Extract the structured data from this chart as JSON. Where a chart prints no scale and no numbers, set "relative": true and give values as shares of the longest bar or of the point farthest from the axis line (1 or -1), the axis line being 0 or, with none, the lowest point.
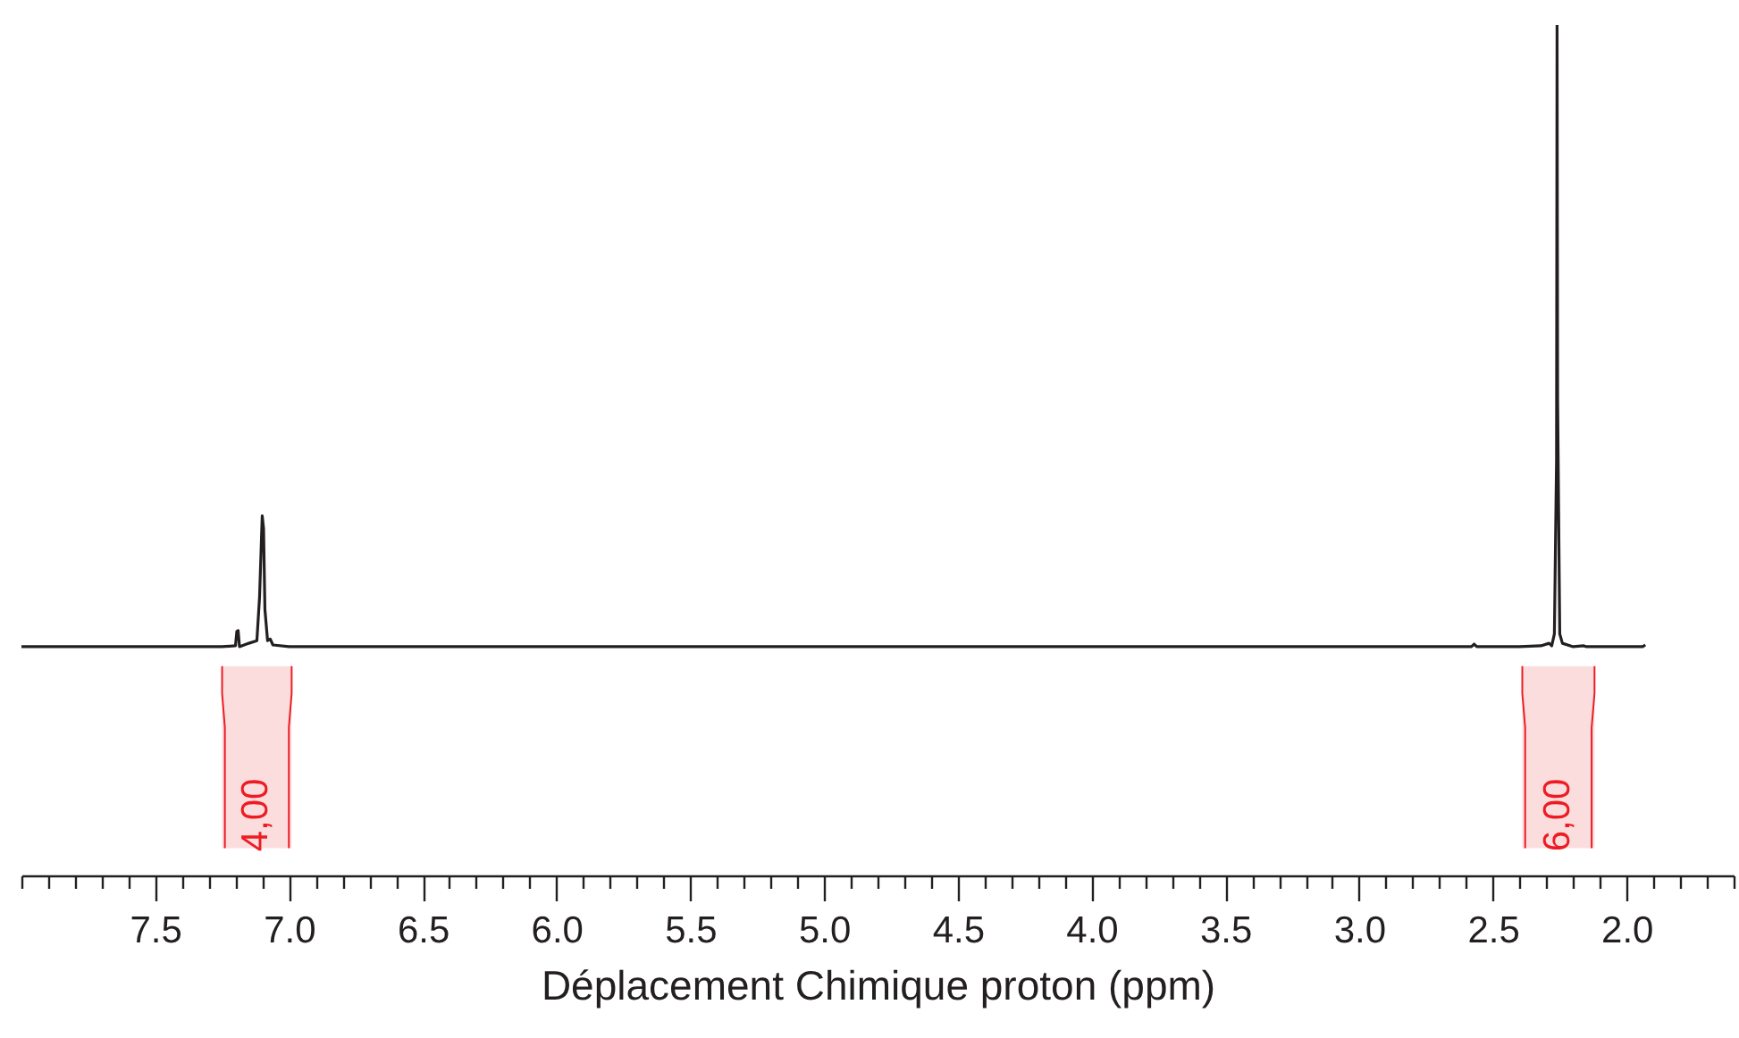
{
  "chart_data": {
    "type": "line",
    "xlabel": "Déplacement Chimique proton (ppm)",
    "relative": true,
    "xlim": [
      8.0,
      1.6
    ],
    "xticks": [
      {
        "value": 8.0,
        "label": null
      },
      {
        "value": 7.9,
        "label": null
      },
      {
        "value": 7.8,
        "label": null
      },
      {
        "value": 7.7,
        "label": null
      },
      {
        "value": 7.6,
        "label": null
      },
      "7.5",
      {
        "value": 7.4,
        "label": null
      },
      {
        "value": 7.3,
        "label": null
      },
      {
        "value": 7.2,
        "label": null
      },
      {
        "value": 7.1,
        "label": null
      },
      {
        "value": 7.0,
        "label": "7.0"
      },
      {
        "value": 6.9,
        "label": null
      },
      {
        "value": 6.8,
        "label": null
      },
      {
        "value": 6.7,
        "label": null
      },
      {
        "value": 6.6,
        "label": null
      },
      6.5,
      {
        "value": 6.4,
        "label": null
      },
      {
        "value": 6.3,
        "label": null
      },
      {
        "value": 6.2,
        "label": null
      },
      {
        "value": 6.1,
        "label": null
      },
      {
        "value": 6.0,
        "label": "6.0"
      },
      {
        "value": 5.9,
        "label": null
      },
      {
        "value": 5.8,
        "label": null
      },
      {
        "value": 5.7,
        "label": null
      },
      {
        "value": 5.6,
        "label": null
      },
      5.5,
      {
        "value": 5.4,
        "label": null
      },
      {
        "value": 5.3,
        "label": null
      },
      {
        "value": 5.2,
        "label": null
      },
      {
        "value": 5.1,
        "label": null
      },
      {
        "value": 5.0,
        "label": "5.0"
      },
      {
        "value": 4.9,
        "label": null
      },
      {
        "value": 4.8,
        "label": null
      },
      {
        "value": 4.7,
        "label": null
      },
      {
        "value": 4.6,
        "label": null
      },
      4.5,
      {
        "value": 4.4,
        "label": null
      },
      {
        "value": 4.3,
        "label": null
      },
      {
        "value": 4.2,
        "label": null
      },
      {
        "value": 4.1,
        "label": null
      },
      {
        "value": 4.0,
        "label": "4.0"
      },
      {
        "value": 3.9,
        "label": null
      },
      {
        "value": 3.8,
        "label": null
      },
      {
        "value": 3.7,
        "label": null
      },
      {
        "value": 3.6,
        "label": null
      },
      3.5,
      {
        "value": 3.4,
        "label": null
      },
      {
        "value": 3.3,
        "label": null
      },
      {
        "value": 3.2,
        "label": null
      },
      {
        "value": 3.1,
        "label": null
      },
      {
        "value": 3.0,
        "label": "3.0"
      },
      {
        "value": 2.9,
        "label": null
      },
      {
        "value": 2.8,
        "label": null
      },
      {
        "value": 2.7,
        "label": null
      },
      {
        "value": 2.6,
        "label": null
      },
      2.5,
      {
        "value": 2.4,
        "label": null
      },
      {
        "value": 2.3,
        "label": null
      },
      {
        "value": 2.2,
        "label": null
      },
      {
        "value": 2.1,
        "label": null
      },
      {
        "value": 2.0,
        "label": "2.0"
      },
      {
        "value": 1.9,
        "label": null
      },
      {
        "value": 1.8,
        "label": null
      },
      {
        "value": 1.7,
        "label": null
      },
      {
        "value": 1.6,
        "label": null
      }
    ],
    "x": [
      8.0,
      7.5,
      7.25,
      7.2,
      7.195,
      7.19,
      7.185,
      7.15,
      7.12,
      7.11,
      7.1,
      7.095,
      7.09,
      7.08,
      7.07,
      7.06,
      7.0,
      6.5,
      3.0,
      2.58,
      2.57,
      2.56,
      2.4,
      2.32,
      2.29,
      2.28,
      2.27,
      2.262,
      2.26,
      2.258,
      2.25,
      2.24,
      2.2,
      2.16,
      2.15,
      1.94,
      1.93
    ],
    "series": [
      {
        "color": "#231f20",
        "values": [
          0.269,
          0.269,
          0.269,
          0.27,
          0.287,
          0.288,
          0.269,
          0.273,
          0.276,
          0.327,
          0.423,
          0.408,
          0.313,
          0.276,
          0.278,
          0.271,
          0.269,
          0.269,
          0.269,
          0.269,
          0.272,
          0.269,
          0.269,
          0.27,
          0.273,
          0.27,
          0.284,
          0.488,
          1,
          0.561,
          0.284,
          0.273,
          0.269,
          0.27,
          0.269,
          0.269,
          0.271
        ]
      }
    ],
    "bands": [
      {
        "axis": "x",
        "from": 7.25,
        "to": 6.99,
        "label": "4,00",
        "color": "#ed1c24"
      },
      {
        "axis": "x",
        "from": 2.39,
        "to": 2.12,
        "label": "6,00",
        "color": "#ed1c24"
      }
    ]
  }
}
